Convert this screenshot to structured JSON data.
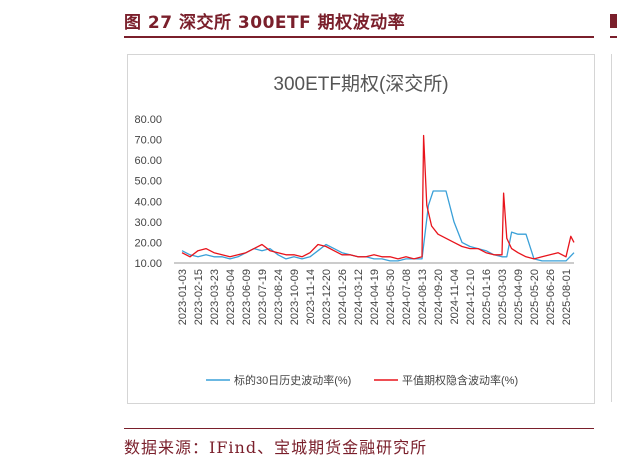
{
  "figure": {
    "title": "图 27 深交所 300ETF 期权波动率",
    "source": "数据来源：IFind、宝城期货金融研究所"
  },
  "chart_data": {
    "type": "line",
    "title": "300ETF期权(深交所)",
    "ylim": [
      10,
      80
    ],
    "yticks": [
      "80.00",
      "70.00",
      "60.00",
      "50.00",
      "40.00",
      "30.00",
      "20.00",
      "10.00"
    ],
    "xticks": [
      "2023-01-03",
      "2023-02-15",
      "2023-03-23",
      "2023-05-04",
      "2023-06-09",
      "2023-07-19",
      "2023-08-24",
      "2023-10-09",
      "2023-11-14",
      "2023-12-20",
      "2024-01-26",
      "2024-03-12",
      "2024-04-19",
      "2024-05-30",
      "2024-07-08",
      "2024-08-13",
      "2024-09-20",
      "2024-11-04",
      "2024-12-10",
      "2025-01-16",
      "2025-03-03",
      "2025-04-09",
      "2025-05-20",
      "2025-06-26",
      "2025-08-01"
    ],
    "legend_position": "bottom",
    "series": [
      {
        "name": "标的30日历史波动率(%)",
        "color": "#3aa0d8",
        "x": [
          0,
          0.5,
          1,
          1.5,
          2,
          2.5,
          3,
          3.5,
          4,
          4.5,
          5,
          5.5,
          6,
          6.5,
          7,
          7.5,
          8,
          8.5,
          9,
          9.5,
          10,
          10.5,
          11,
          11.5,
          12,
          12.5,
          13,
          13.5,
          14,
          14.5,
          15,
          15.4,
          15.7,
          16,
          16.5,
          17,
          17.5,
          18,
          18.5,
          19,
          19.5,
          20,
          20.3,
          20.6,
          21,
          21.5,
          22,
          22.5,
          23,
          23.5,
          24,
          24.5
        ],
        "values": [
          16,
          14,
          13,
          14,
          13,
          13,
          12,
          13,
          15,
          17,
          16,
          17,
          14,
          12,
          13,
          12,
          13,
          16,
          19,
          17,
          15,
          14,
          13,
          13,
          12,
          12,
          11,
          11,
          12,
          12,
          12,
          38,
          45,
          45,
          45,
          30,
          20,
          18,
          17,
          16,
          14,
          13,
          13,
          25,
          24,
          24,
          12,
          11,
          11,
          11,
          11,
          15
        ]
      },
      {
        "name": "平值期权隐含波动率(%)",
        "color": "#e8141c",
        "x": [
          0,
          0.5,
          1,
          1.5,
          2,
          2.5,
          3,
          3.5,
          4,
          4.5,
          5,
          5.5,
          6,
          6.5,
          7,
          7.5,
          8,
          8.5,
          9,
          9.5,
          10,
          10.5,
          11,
          11.5,
          12,
          12.5,
          13,
          13.5,
          14,
          14.5,
          15,
          15.1,
          15.3,
          15.6,
          16,
          16.5,
          17,
          17.5,
          18,
          18.5,
          19,
          19.5,
          20,
          20.1,
          20.3,
          20.6,
          21,
          21.5,
          22,
          22.5,
          23,
          23.5,
          24,
          24.3,
          24.5
        ],
        "values": [
          15,
          13,
          16,
          17,
          15,
          14,
          13,
          14,
          15,
          17,
          19,
          16,
          15,
          14,
          14,
          13,
          15,
          19,
          18,
          16,
          14,
          14,
          13,
          13,
          14,
          13,
          13,
          12,
          13,
          12,
          13,
          72,
          38,
          28,
          24,
          22,
          20,
          18,
          17,
          17,
          15,
          14,
          14,
          44,
          22,
          17,
          15,
          13,
          12,
          13,
          14,
          15,
          13,
          23,
          20
        ]
      }
    ]
  }
}
